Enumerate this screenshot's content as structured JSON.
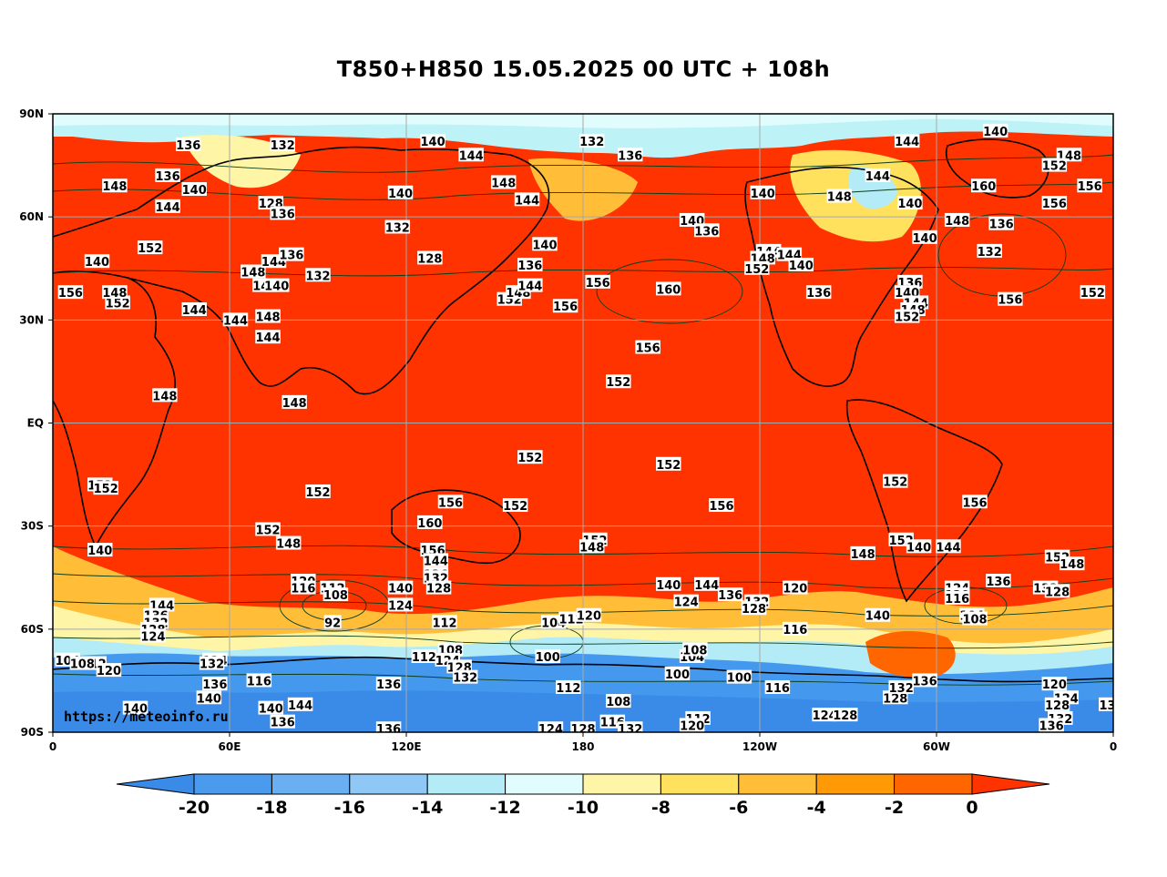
{
  "title": "T850+H850 15.05.2025 00 UTC + 108h",
  "credit": "https://meteoinfo.ru",
  "map": {
    "lon_range": [
      0,
      360
    ],
    "lat_range": [
      -90,
      90
    ],
    "lat_ticks": [
      {
        "lat": 90,
        "label": "90N"
      },
      {
        "lat": 60,
        "label": "60N"
      },
      {
        "lat": 30,
        "label": "30N"
      },
      {
        "lat": 0,
        "label": "EQ"
      },
      {
        "lat": -30,
        "label": "30S"
      },
      {
        "lat": -60,
        "label": "60S"
      },
      {
        "lat": -90,
        "label": "90S"
      }
    ],
    "lon_ticks": [
      {
        "lon": 0,
        "label": "0"
      },
      {
        "lon": 60,
        "label": "60E"
      },
      {
        "lon": 120,
        "label": "120E"
      },
      {
        "lon": 180,
        "label": "180"
      },
      {
        "lon": 240,
        "label": "120W"
      },
      {
        "lon": 300,
        "label": "60W"
      },
      {
        "lon": 360,
        "label": "0"
      }
    ],
    "colors": {
      "warm": "#ff3300",
      "land": "#000000",
      "contour": "#0b3d1a",
      "grid": "#a9a9a9"
    },
    "temperature_zones": [
      {
        "name": "arctic-cold",
        "color": "#bdf2f7"
      },
      {
        "name": "antarctic-cold",
        "color": "#4499ee"
      }
    ],
    "contour_labels": [
      {
        "lon": 46,
        "lat": 81,
        "text": "136"
      },
      {
        "lon": 78,
        "lat": 81,
        "text": "132"
      },
      {
        "lon": 129,
        "lat": 82,
        "text": "140"
      },
      {
        "lon": 142,
        "lat": 78,
        "text": "144"
      },
      {
        "lon": 183,
        "lat": 82,
        "text": "132"
      },
      {
        "lon": 196,
        "lat": 78,
        "text": "136"
      },
      {
        "lon": 320,
        "lat": 85,
        "text": "140"
      },
      {
        "lon": 290,
        "lat": 82,
        "text": "144"
      },
      {
        "lon": 345,
        "lat": 78,
        "text": "148"
      },
      {
        "lon": 340,
        "lat": 75,
        "text": "152"
      },
      {
        "lon": 352,
        "lat": 69,
        "text": "156"
      },
      {
        "lon": 340,
        "lat": 64,
        "text": "156"
      },
      {
        "lon": 316,
        "lat": 69,
        "text": "160"
      },
      {
        "lon": 21,
        "lat": 69,
        "text": "148"
      },
      {
        "lon": 39,
        "lat": 72,
        "text": "136"
      },
      {
        "lon": 48,
        "lat": 68,
        "text": "140"
      },
      {
        "lon": 39,
        "lat": 63,
        "text": "144"
      },
      {
        "lon": 74,
        "lat": 64,
        "text": "128"
      },
      {
        "lon": 78,
        "lat": 61,
        "text": "136"
      },
      {
        "lon": 118,
        "lat": 67,
        "text": "140"
      },
      {
        "lon": 153,
        "lat": 70,
        "text": "148"
      },
      {
        "lon": 161,
        "lat": 65,
        "text": "144"
      },
      {
        "lon": 117,
        "lat": 57,
        "text": "132"
      },
      {
        "lon": 128,
        "lat": 48,
        "text": "128"
      },
      {
        "lon": 167,
        "lat": 52,
        "text": "140"
      },
      {
        "lon": 217,
        "lat": 59,
        "text": "140"
      },
      {
        "lon": 222,
        "lat": 56,
        "text": "136"
      },
      {
        "lon": 241,
        "lat": 67,
        "text": "140"
      },
      {
        "lon": 267,
        "lat": 66,
        "text": "148"
      },
      {
        "lon": 280,
        "lat": 72,
        "text": "144"
      },
      {
        "lon": 291,
        "lat": 64,
        "text": "140"
      },
      {
        "lon": 296,
        "lat": 54,
        "text": "140"
      },
      {
        "lon": 307,
        "lat": 59,
        "text": "148"
      },
      {
        "lon": 322,
        "lat": 58,
        "text": "136"
      },
      {
        "lon": 318,
        "lat": 50,
        "text": "132"
      },
      {
        "lon": 325,
        "lat": 36,
        "text": "156"
      },
      {
        "lon": 353,
        "lat": 38,
        "text": "152"
      },
      {
        "lon": 15,
        "lat": 47,
        "text": "140"
      },
      {
        "lon": 6,
        "lat": 38,
        "text": "156"
      },
      {
        "lon": 22,
        "lat": 35,
        "text": "152"
      },
      {
        "lon": 21,
        "lat": 38,
        "text": "148"
      },
      {
        "lon": 33,
        "lat": 51,
        "text": "152"
      },
      {
        "lon": 68,
        "lat": 44,
        "text": "148"
      },
      {
        "lon": 75,
        "lat": 47,
        "text": "144"
      },
      {
        "lon": 81,
        "lat": 49,
        "text": "136"
      },
      {
        "lon": 90,
        "lat": 43,
        "text": "132"
      },
      {
        "lon": 72,
        "lat": 40,
        "text": "140"
      },
      {
        "lon": 76,
        "lat": 40,
        "text": "140"
      },
      {
        "lon": 48,
        "lat": 33,
        "text": "144"
      },
      {
        "lon": 62,
        "lat": 30,
        "text": "144"
      },
      {
        "lon": 73,
        "lat": 31,
        "text": "148"
      },
      {
        "lon": 73,
        "lat": 25,
        "text": "144"
      },
      {
        "lon": 155,
        "lat": 36,
        "text": "152"
      },
      {
        "lon": 158,
        "lat": 38,
        "text": "148"
      },
      {
        "lon": 162,
        "lat": 40,
        "text": "144"
      },
      {
        "lon": 162,
        "lat": 46,
        "text": "136"
      },
      {
        "lon": 174,
        "lat": 34,
        "text": "156"
      },
      {
        "lon": 185,
        "lat": 41,
        "text": "156"
      },
      {
        "lon": 209,
        "lat": 39,
        "text": "160"
      },
      {
        "lon": 202,
        "lat": 22,
        "text": "156"
      },
      {
        "lon": 243,
        "lat": 50,
        "text": "144"
      },
      {
        "lon": 241,
        "lat": 48,
        "text": "148"
      },
      {
        "lon": 239,
        "lat": 45,
        "text": "152"
      },
      {
        "lon": 250,
        "lat": 49,
        "text": "144"
      },
      {
        "lon": 254,
        "lat": 46,
        "text": "140"
      },
      {
        "lon": 260,
        "lat": 38,
        "text": "136"
      },
      {
        "lon": 291,
        "lat": 41,
        "text": "136"
      },
      {
        "lon": 290,
        "lat": 38,
        "text": "140"
      },
      {
        "lon": 293,
        "lat": 35,
        "text": "144"
      },
      {
        "lon": 292,
        "lat": 33,
        "text": "148"
      },
      {
        "lon": 290,
        "lat": 31,
        "text": "152"
      },
      {
        "lon": 38,
        "lat": 8,
        "text": "148"
      },
      {
        "lon": 82,
        "lat": 6,
        "text": "148"
      },
      {
        "lon": 192,
        "lat": 12,
        "text": "152"
      },
      {
        "lon": 162,
        "lat": -10,
        "text": "152"
      },
      {
        "lon": 209,
        "lat": -12,
        "text": "152"
      },
      {
        "lon": 16,
        "lat": -18,
        "text": "152"
      },
      {
        "lon": 18,
        "lat": -19,
        "text": "152"
      },
      {
        "lon": 90,
        "lat": -20,
        "text": "152"
      },
      {
        "lon": 135,
        "lat": -23,
        "text": "156"
      },
      {
        "lon": 157,
        "lat": -24,
        "text": "152"
      },
      {
        "lon": 227,
        "lat": -24,
        "text": "156"
      },
      {
        "lon": 286,
        "lat": -17,
        "text": "152"
      },
      {
        "lon": 313,
        "lat": -23,
        "text": "156"
      },
      {
        "lon": 128,
        "lat": -29,
        "text": "160"
      },
      {
        "lon": 73,
        "lat": -31,
        "text": "152"
      },
      {
        "lon": 80,
        "lat": -35,
        "text": "148"
      },
      {
        "lon": 16,
        "lat": -37,
        "text": "140"
      },
      {
        "lon": 129,
        "lat": -37,
        "text": "156"
      },
      {
        "lon": 130,
        "lat": -40,
        "text": "144"
      },
      {
        "lon": 130,
        "lat": -44,
        "text": "136"
      },
      {
        "lon": 130,
        "lat": -45,
        "text": "132"
      },
      {
        "lon": 131,
        "lat": -48,
        "text": "128"
      },
      {
        "lon": 118,
        "lat": -48,
        "text": "140"
      },
      {
        "lon": 85,
        "lat": -46,
        "text": "120"
      },
      {
        "lon": 85,
        "lat": -48,
        "text": "116"
      },
      {
        "lon": 95,
        "lat": -48,
        "text": "112"
      },
      {
        "lon": 96,
        "lat": -50,
        "text": "108"
      },
      {
        "lon": 95,
        "lat": -58,
        "text": "92"
      },
      {
        "lon": 118,
        "lat": -53,
        "text": "124"
      },
      {
        "lon": 133,
        "lat": -58,
        "text": "112"
      },
      {
        "lon": 184,
        "lat": -34,
        "text": "152"
      },
      {
        "lon": 183,
        "lat": -36,
        "text": "148"
      },
      {
        "lon": 209,
        "lat": -47,
        "text": "140"
      },
      {
        "lon": 222,
        "lat": -47,
        "text": "144"
      },
      {
        "lon": 230,
        "lat": -50,
        "text": "136"
      },
      {
        "lon": 215,
        "lat": -52,
        "text": "124"
      },
      {
        "lon": 239,
        "lat": -52,
        "text": "132"
      },
      {
        "lon": 238,
        "lat": -54,
        "text": "128"
      },
      {
        "lon": 252,
        "lat": -48,
        "text": "120"
      },
      {
        "lon": 252,
        "lat": -60,
        "text": "116"
      },
      {
        "lon": 275,
        "lat": -38,
        "text": "148"
      },
      {
        "lon": 288,
        "lat": -34,
        "text": "152"
      },
      {
        "lon": 294,
        "lat": -36,
        "text": "140"
      },
      {
        "lon": 304,
        "lat": -36,
        "text": "144"
      },
      {
        "lon": 307,
        "lat": -48,
        "text": "124"
      },
      {
        "lon": 307,
        "lat": -50,
        "text": "120"
      },
      {
        "lon": 307,
        "lat": -51,
        "text": "116"
      },
      {
        "lon": 321,
        "lat": -46,
        "text": "136"
      },
      {
        "lon": 337,
        "lat": -48,
        "text": "132"
      },
      {
        "lon": 341,
        "lat": -49,
        "text": "128"
      },
      {
        "lon": 341,
        "lat": -39,
        "text": "152"
      },
      {
        "lon": 346,
        "lat": -41,
        "text": "148"
      },
      {
        "lon": 312,
        "lat": -56,
        "text": "104"
      },
      {
        "lon": 313,
        "lat": -57,
        "text": "108"
      },
      {
        "lon": 280,
        "lat": -56,
        "text": "140"
      },
      {
        "lon": 37,
        "lat": -53,
        "text": "144"
      },
      {
        "lon": 35,
        "lat": -56,
        "text": "136"
      },
      {
        "lon": 35,
        "lat": -58,
        "text": "132"
      },
      {
        "lon": 34,
        "lat": -60,
        "text": "128"
      },
      {
        "lon": 34,
        "lat": -62,
        "text": "124"
      },
      {
        "lon": 5,
        "lat": -69,
        "text": "104"
      },
      {
        "lon": 14,
        "lat": -70,
        "text": "112"
      },
      {
        "lon": 10,
        "lat": -70,
        "text": "108"
      },
      {
        "lon": 19,
        "lat": -72,
        "text": "120"
      },
      {
        "lon": 55,
        "lat": -69,
        "text": "124"
      },
      {
        "lon": 54,
        "lat": -70,
        "text": "132"
      },
      {
        "lon": 55,
        "lat": -76,
        "text": "136"
      },
      {
        "lon": 53,
        "lat": -80,
        "text": "140"
      },
      {
        "lon": 70,
        "lat": -75,
        "text": "116"
      },
      {
        "lon": 74,
        "lat": -83,
        "text": "140"
      },
      {
        "lon": 84,
        "lat": -82,
        "text": "144"
      },
      {
        "lon": 78,
        "lat": -87,
        "text": "136"
      },
      {
        "lon": 28,
        "lat": -83,
        "text": "140"
      },
      {
        "lon": 114,
        "lat": -76,
        "text": "136"
      },
      {
        "lon": 126,
        "lat": -68,
        "text": "112"
      },
      {
        "lon": 135,
        "lat": -66,
        "text": "108"
      },
      {
        "lon": 134,
        "lat": -69,
        "text": "124"
      },
      {
        "lon": 138,
        "lat": -71,
        "text": "128"
      },
      {
        "lon": 140,
        "lat": -74,
        "text": "132"
      },
      {
        "lon": 114,
        "lat": -89,
        "text": "136"
      },
      {
        "lon": 170,
        "lat": -58,
        "text": "104"
      },
      {
        "lon": 176,
        "lat": -57,
        "text": "112"
      },
      {
        "lon": 182,
        "lat": -56,
        "text": "120"
      },
      {
        "lon": 168,
        "lat": -68,
        "text": "100"
      },
      {
        "lon": 175,
        "lat": -77,
        "text": "112"
      },
      {
        "lon": 192,
        "lat": -81,
        "text": "108"
      },
      {
        "lon": 190,
        "lat": -87,
        "text": "116"
      },
      {
        "lon": 196,
        "lat": -89,
        "text": "132"
      },
      {
        "lon": 169,
        "lat": -89,
        "text": "124"
      },
      {
        "lon": 180,
        "lat": -89,
        "text": "128"
      },
      {
        "lon": 217,
        "lat": -68,
        "text": "104"
      },
      {
        "lon": 218,
        "lat": -66,
        "text": "108"
      },
      {
        "lon": 212,
        "lat": -73,
        "text": "100"
      },
      {
        "lon": 233,
        "lat": -74,
        "text": "100"
      },
      {
        "lon": 246,
        "lat": -77,
        "text": "116"
      },
      {
        "lon": 219,
        "lat": -86,
        "text": "112"
      },
      {
        "lon": 217,
        "lat": -88,
        "text": "120"
      },
      {
        "lon": 262,
        "lat": -85,
        "text": "124"
      },
      {
        "lon": 269,
        "lat": -85,
        "text": "128"
      },
      {
        "lon": 286,
        "lat": -80,
        "text": "128"
      },
      {
        "lon": 288,
        "lat": -77,
        "text": "132"
      },
      {
        "lon": 296,
        "lat": -75,
        "text": "136"
      },
      {
        "lon": 340,
        "lat": -76,
        "text": "120"
      },
      {
        "lon": 344,
        "lat": -80,
        "text": "124"
      },
      {
        "lon": 341,
        "lat": -82,
        "text": "128"
      },
      {
        "lon": 342,
        "lat": -86,
        "text": "132"
      },
      {
        "lon": 339,
        "lat": -88,
        "text": "136"
      },
      {
        "lon": 358,
        "lat": -82,
        "text": "13"
      }
    ]
  },
  "colorbar": {
    "colors": [
      "#3a8ae8",
      "#4a9aee",
      "#6aaff2",
      "#8fc8f7",
      "#b3ecf7",
      "#e1fcfc",
      "#fff5a6",
      "#ffe15e",
      "#ffbd38",
      "#ff9a06",
      "#ff6600",
      "#ff3300"
    ],
    "labels": [
      "-20",
      "-18",
      "-16",
      "-14",
      "-12",
      "-10",
      "-8",
      "-6",
      "-4",
      "-2",
      "0"
    ]
  }
}
